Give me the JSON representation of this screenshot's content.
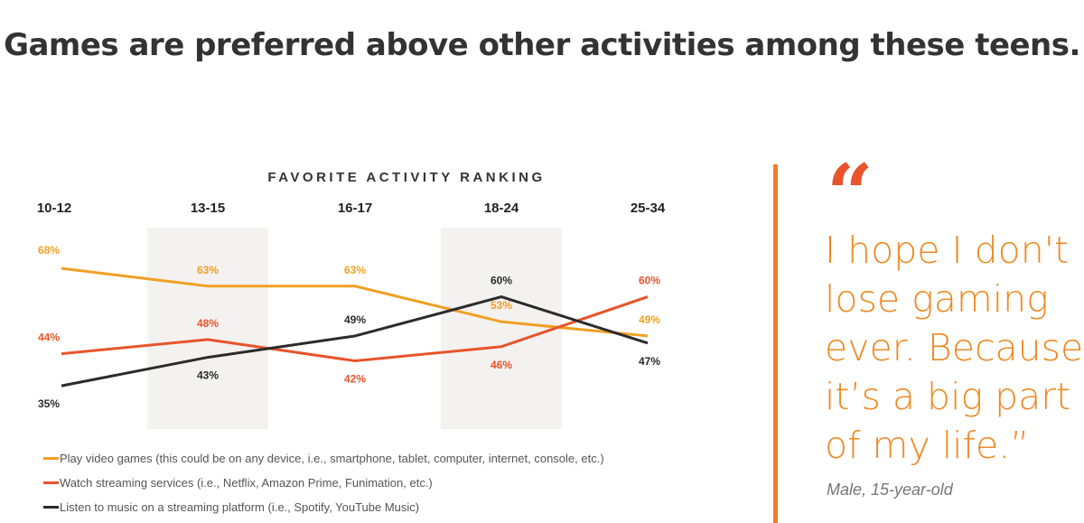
{
  "page": {
    "title": "Games are preferred above other activities among these teens.",
    "quote": {
      "mark": "“",
      "text": "I hope I don't lose gaming ever. Because it’s a big part of my life.”",
      "author": "Male, 15-year-old",
      "icon": "quote-mark-icon"
    }
  },
  "chart_data": {
    "type": "line",
    "title": "FAVORITE ACTIVITY RANKING",
    "categories": [
      "10-12",
      "13-15",
      "16-17",
      "18-24",
      "25-34"
    ],
    "ylabel": "",
    "xlabel": "",
    "unit": "%",
    "grid": false,
    "legend_position": "bottom",
    "series": [
      {
        "name": "Play video games (this could be on any device, i.e., smartphone, tablet, computer, internet, console, etc.)",
        "color": "#F0A023",
        "values": [
          68,
          63,
          63,
          53,
          49
        ],
        "labels": [
          "68%",
          "63%",
          "63%",
          "53%",
          "49%"
        ]
      },
      {
        "name": "Watch streaming services (i.e., Netflix, Amazon Prime, Funimation, etc.)",
        "color": "#E8542B",
        "values": [
          44,
          48,
          42,
          46,
          60
        ],
        "labels": [
          "44%",
          "48%",
          "42%",
          "46%",
          "60%"
        ]
      },
      {
        "name": "Listen to music on a streaming platform (i.e., Spotify, YouTube Music)",
        "color": "#2B2B2B",
        "values": [
          35,
          43,
          49,
          60,
          47
        ],
        "labels": [
          "35%",
          "43%",
          "49%",
          "60%",
          "47%"
        ]
      }
    ],
    "shaded_categories": [
      "13-15",
      "18-24"
    ]
  }
}
